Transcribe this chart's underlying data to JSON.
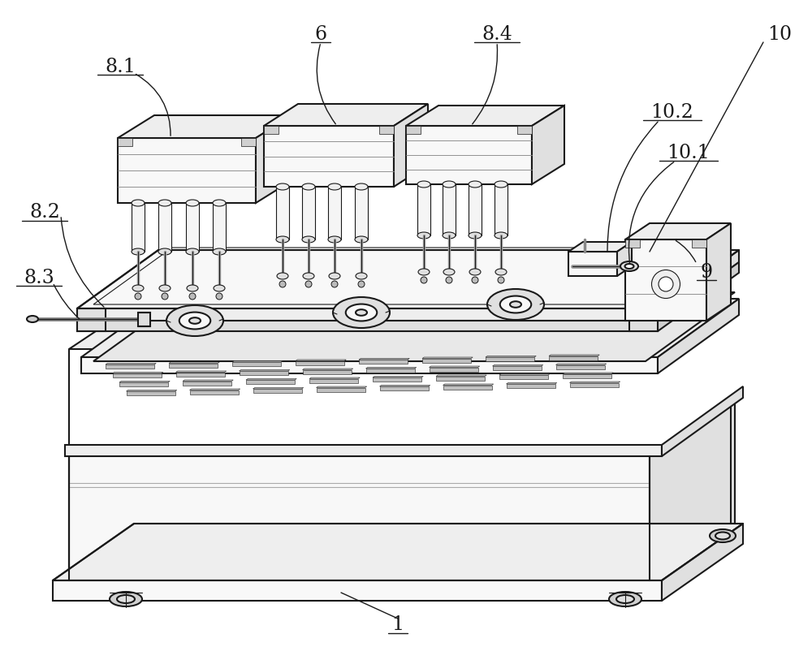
{
  "bg_color": "#ffffff",
  "lc": "#1a1a1a",
  "lw": 1.5,
  "tlw": 0.8,
  "fs": 17,
  "figsize": [
    10.0,
    7.97
  ],
  "dpi": 100,
  "shade1": "#f8f8f8",
  "shade2": "#eeeeee",
  "shade3": "#e0e0e0",
  "shade4": "#d0d0d0",
  "shade5": "#c0c0c0"
}
